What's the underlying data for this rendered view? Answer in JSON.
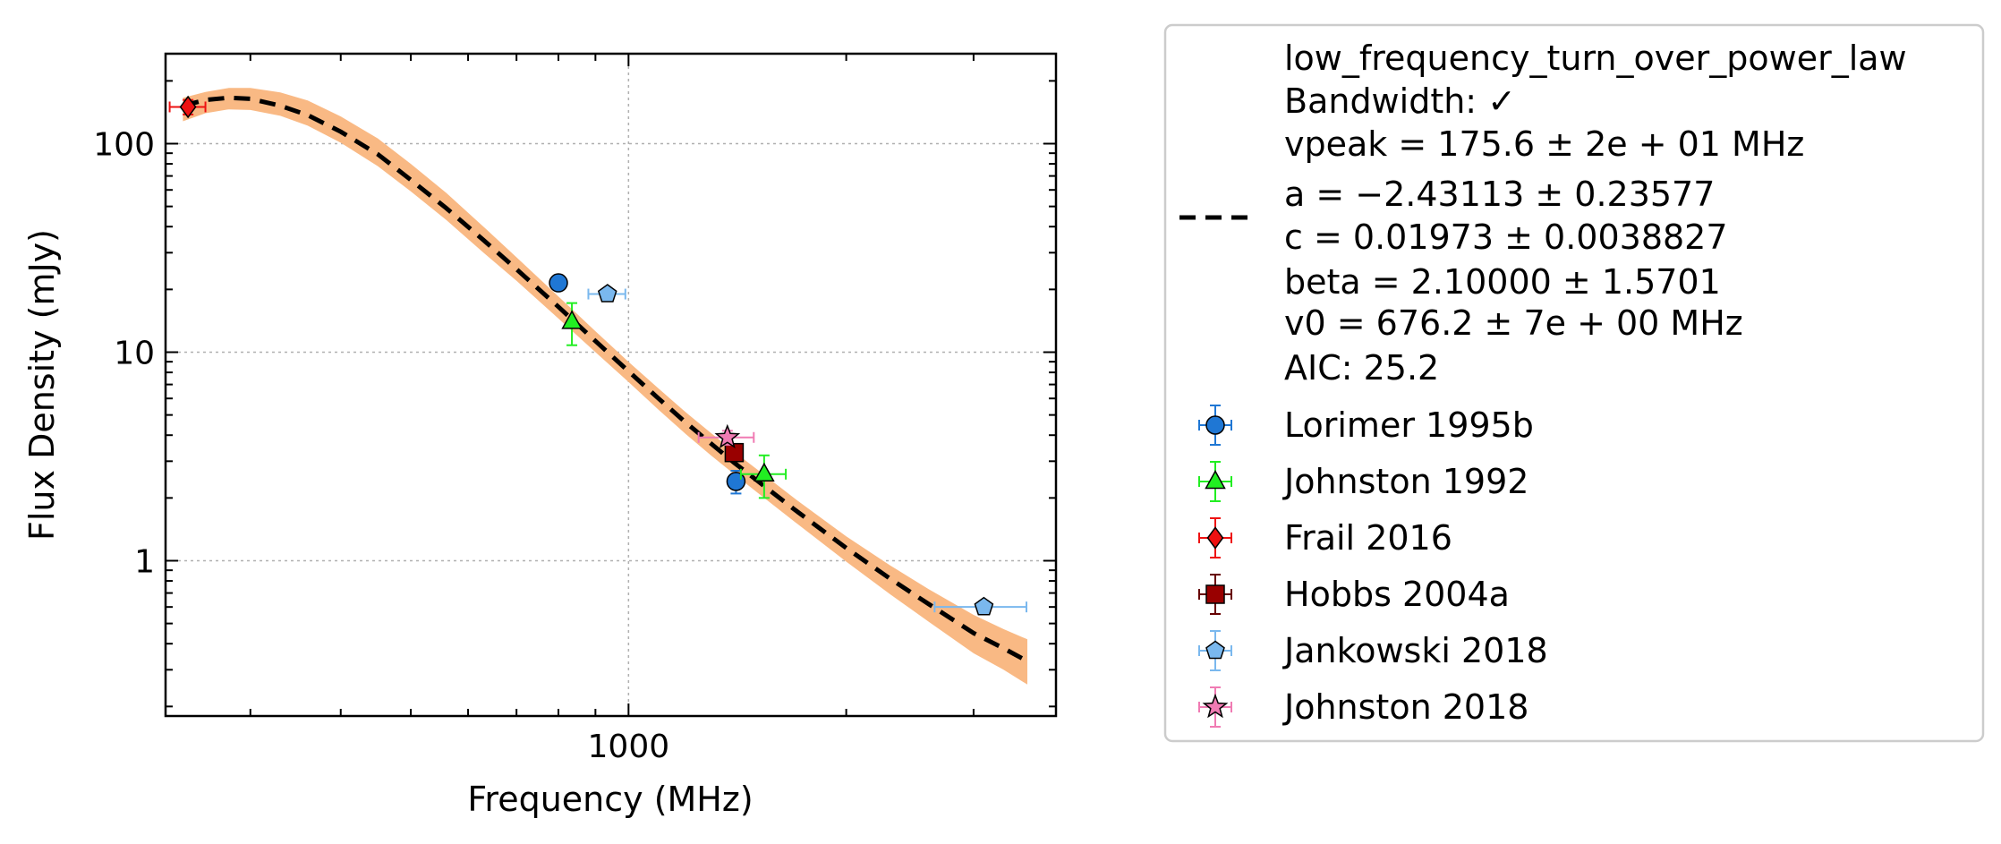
{
  "chart_data": {
    "type": "scatter",
    "xlabel": "Frequency (MHz)",
    "ylabel": "Flux Density (mJy)",
    "x_scale": "log",
    "y_scale": "log",
    "xlim": [
      229,
      3900
    ],
    "ylim": [
      0.18,
      270
    ],
    "x_ticks": [
      {
        "value": 1000,
        "label": "1000"
      }
    ],
    "y_ticks": [
      {
        "value": 1,
        "label": "1"
      },
      {
        "value": 10,
        "label": "10"
      },
      {
        "value": 100,
        "label": "100"
      }
    ],
    "grid": true,
    "legend_position": "outside-right",
    "fit": {
      "name": "low_frequency_turn_over_power_law",
      "label_lines": [
        "low_frequency_turn_over_power_law",
        "Bandwidth: ✓",
        "vpeak = 175.6 ± 2e + 01 MHz",
        "a = −2.43113 ± 0.23577",
        "c = 0.01973 ± 0.0038827",
        "beta = 2.10000 ± 1.5701",
        "v0 = 676.2 ± 7e + 00 MHz",
        "AIC: 25.2"
      ],
      "color": "#000000",
      "band_color": "#f9b984",
      "x": [
        242,
        260,
        280,
        300,
        330,
        360,
        400,
        450,
        500,
        560,
        630,
        700,
        800,
        900,
        1000,
        1100,
        1200,
        1300,
        1400,
        1500,
        1700,
        2000,
        2300,
        2600,
        3000,
        3300,
        3560
      ],
      "y": [
        152,
        162,
        166,
        164,
        152,
        137,
        114,
        89,
        67,
        49,
        34.5,
        25,
        16.5,
        11.3,
        8.1,
        6.0,
        4.6,
        3.65,
        2.95,
        2.45,
        1.75,
        1.15,
        0.82,
        0.62,
        0.45,
        0.38,
        0.33
      ],
      "band_lower": [
        128,
        140,
        146,
        145,
        136,
        122,
        101,
        78,
        59,
        43,
        30,
        22,
        14.5,
        10.0,
        7.2,
        5.3,
        4.05,
        3.2,
        2.6,
        2.15,
        1.53,
        0.99,
        0.69,
        0.51,
        0.36,
        0.3,
        0.255
      ],
      "band_upper": [
        166,
        177,
        185,
        185,
        176,
        161,
        135,
        106,
        80,
        58,
        40,
        28.5,
        18.5,
        12.6,
        9.0,
        6.7,
        5.15,
        4.1,
        3.33,
        2.77,
        1.98,
        1.31,
        0.95,
        0.73,
        0.55,
        0.47,
        0.42
      ]
    },
    "series": [
      {
        "name": "Lorimer 1995b",
        "marker": "circle",
        "color": "#1f77d4",
        "ecolor": "#1f77d4",
        "points": [
          {
            "x": 800,
            "y": 21.5,
            "yerr": 1.2,
            "xerr": 0
          },
          {
            "x": 1408,
            "y": 2.4,
            "yerr": 0.3,
            "xerr": 0
          }
        ]
      },
      {
        "name": "Johnston 1992",
        "marker": "triangle",
        "color": "#22ee22",
        "ecolor": "#22ee22",
        "points": [
          {
            "x": 835,
            "y": 14.0,
            "yerr": 3.2,
            "xerr": 0
          },
          {
            "x": 1540,
            "y": 2.6,
            "yerr": 0.6,
            "xerr": 110
          }
        ]
      },
      {
        "name": "Frail 2016",
        "marker": "diamond",
        "color": "#ee1111",
        "ecolor": "#ee1111",
        "points": [
          {
            "x": 246,
            "y": 150,
            "yerr": 12,
            "xerr": 14
          }
        ]
      },
      {
        "name": "Hobbs 2004a",
        "marker": "square",
        "color": "#990000",
        "ecolor": "#660000",
        "points": [
          {
            "x": 1400,
            "y": 3.3,
            "yerr": 0.3,
            "xerr": 0
          }
        ]
      },
      {
        "name": "Jankowski 2018",
        "marker": "pentagon",
        "color": "#7ab8ee",
        "ecolor": "#7ab8ee",
        "points": [
          {
            "x": 935,
            "y": 19.0,
            "yerr": 0.8,
            "xerr": 55
          },
          {
            "x": 3100,
            "y": 0.6,
            "yerr": 0.04,
            "xerr": 450
          }
        ]
      },
      {
        "name": "Johnston 2018",
        "marker": "star",
        "color": "#f07bb3",
        "ecolor": "#f07bb3",
        "points": [
          {
            "x": 1370,
            "y": 3.9,
            "yerr": 0.3,
            "xerr": 120
          }
        ]
      }
    ]
  }
}
